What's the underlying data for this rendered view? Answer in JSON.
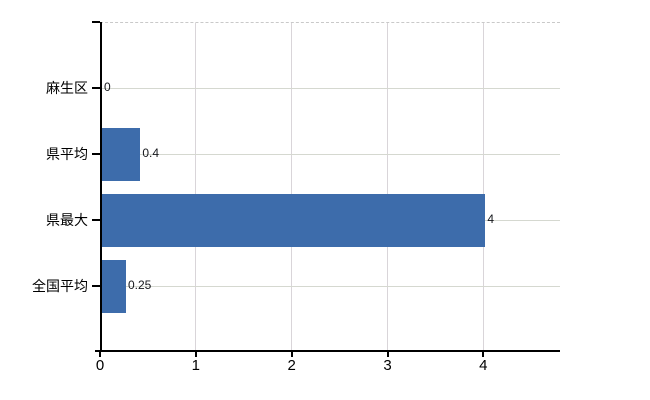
{
  "chart_data": {
    "type": "bar",
    "orientation": "horizontal",
    "title": "",
    "categories": [
      "麻生区",
      "県平均",
      "県最大",
      "全国平均"
    ],
    "values": [
      0,
      0.4,
      4,
      0.25
    ],
    "value_labels": [
      "0",
      "0.4",
      "4",
      "0.25"
    ],
    "x_tick_values": [
      0,
      1,
      2,
      3,
      4
    ],
    "x_tick_labels": [
      "0",
      "1",
      "2",
      "3",
      "4"
    ],
    "xlim": [
      0,
      4.8
    ],
    "grid": true,
    "legend": "none",
    "colors": {
      "bar": "#3d6cab",
      "axis": "#000000",
      "grid_horizontal": "#d5d8d0",
      "grid_vertical": "#d9d5d9",
      "plot_top_border": "#c9c9c9",
      "category_text": "#000000",
      "tick_text": "#000000",
      "value_text": "#15171c"
    }
  }
}
